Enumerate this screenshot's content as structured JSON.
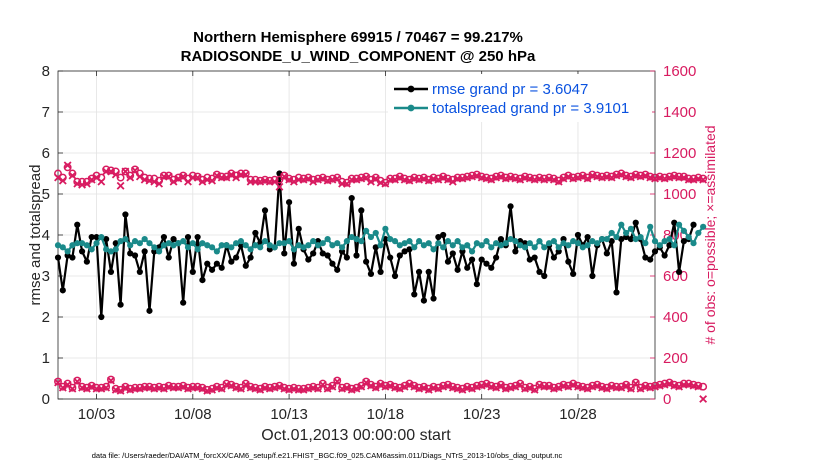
{
  "chart_data": {
    "type": "line",
    "title": "Northern Hemisphere 69915 / 70467 = 99.217%",
    "subtitle": "RADIOSONDE_U_WIND_COMPONENT @ 250 hPa",
    "xlabel": "Oct.01,2013 00:00:00 start",
    "ylabel": "rmse and totalspread",
    "ylabel_right": "# of obs: o=possible; ×=assimilated",
    "footer": "data file: /Users/raeder/DAI/ATM_forcXX/CAM6_setup/f.e21.FHIST_BGC.f09_025.CAM6assim.011/Diags_NTrS_2013-10/obs_diag_output.nc",
    "xlim": [
      1,
      32
    ],
    "ylim": [
      0,
      8
    ],
    "ylim_right": [
      0,
      1600
    ],
    "grid": true,
    "x_ticks": [
      3,
      8,
      13,
      18,
      23,
      28
    ],
    "x_tick_labels": [
      "10/03",
      "10/08",
      "10/13",
      "10/18",
      "10/23",
      "10/28"
    ],
    "y_ticks": [
      0,
      1,
      2,
      3,
      4,
      5,
      6,
      7,
      8
    ],
    "y_ticks_right": [
      0,
      200,
      400,
      600,
      800,
      1000,
      1200,
      1400,
      1600
    ],
    "legend_position": "top-right",
    "x_start": 1.0,
    "x_step": 0.25,
    "series": [
      {
        "name": "rmse grand pr = 3.6047",
        "axis": "left",
        "color": "#000000",
        "marker": "circle",
        "values": [
          3.45,
          2.65,
          3.5,
          3.45,
          4.25,
          3.6,
          3.35,
          3.95,
          3.95,
          2.0,
          3.9,
          3.1,
          3.8,
          2.3,
          4.5,
          3.55,
          3.5,
          3.1,
          3.6,
          2.15,
          3.6,
          3.7,
          3.95,
          3.45,
          3.9,
          3.8,
          2.35,
          3.95,
          3.1,
          3.95,
          2.9,
          3.3,
          3.15,
          3.3,
          3.2,
          3.75,
          3.35,
          3.45,
          3.75,
          3.25,
          3.45,
          4.05,
          3.8,
          4.6,
          3.65,
          3.7,
          5.5,
          3.55,
          4.8,
          3.3,
          4.15,
          3.65,
          3.4,
          3.55,
          3.85,
          3.55,
          3.5,
          3.3,
          3.15,
          3.6,
          3.45,
          4.9,
          3.5,
          4.6,
          3.35,
          3.05,
          3.7,
          3.1,
          3.9,
          3.45,
          3.0,
          3.5,
          3.6,
          3.65,
          2.55,
          3.1,
          2.4,
          3.1,
          2.45,
          3.95,
          4.0,
          3.35,
          3.55,
          3.15,
          3.6,
          3.2,
          3.4,
          2.8,
          3.4,
          3.3,
          3.2,
          3.45,
          3.9,
          3.75,
          4.7,
          3.6,
          3.85,
          3.8,
          3.4,
          3.45,
          3.1,
          3.0,
          3.75,
          3.45,
          3.6,
          3.9,
          3.35,
          3.05,
          4.0,
          3.75,
          3.95,
          3.0,
          3.75,
          3.9,
          3.55,
          3.85,
          2.6,
          3.9,
          3.95,
          3.9,
          4.3,
          3.9,
          3.45,
          3.4,
          3.6,
          3.7,
          3.5,
          3.75,
          4.3,
          3.1,
          3.85,
          3.9,
          4.25
        ]
      },
      {
        "name": "totalspread grand pr = 3.9101",
        "axis": "left",
        "color": "#1a8a8a",
        "marker": "circle",
        "values": [
          3.75,
          3.7,
          3.6,
          3.75,
          3.8,
          3.8,
          3.75,
          3.65,
          3.8,
          3.95,
          3.65,
          3.6,
          3.65,
          3.85,
          3.9,
          3.75,
          3.85,
          3.8,
          3.9,
          3.8,
          3.7,
          3.6,
          3.75,
          3.8,
          3.75,
          3.8,
          3.85,
          3.7,
          3.8,
          3.65,
          3.8,
          3.75,
          3.7,
          3.6,
          3.75,
          3.75,
          3.7,
          3.8,
          3.85,
          3.75,
          3.65,
          3.75,
          3.7,
          3.85,
          3.75,
          3.7,
          3.8,
          3.8,
          3.85,
          3.65,
          3.75,
          3.7,
          3.75,
          3.85,
          3.75,
          3.8,
          3.9,
          3.75,
          3.8,
          3.7,
          3.85,
          3.95,
          3.9,
          3.85,
          4.1,
          3.95,
          4.05,
          3.75,
          4.15,
          3.9,
          3.85,
          3.75,
          3.8,
          3.85,
          3.7,
          3.85,
          3.75,
          3.8,
          3.65,
          3.8,
          3.7,
          3.85,
          3.75,
          3.85,
          3.7,
          3.75,
          3.6,
          3.8,
          3.75,
          3.85,
          3.7,
          3.8,
          3.75,
          3.8,
          3.9,
          3.85,
          3.75,
          3.7,
          3.8,
          3.7,
          3.85,
          3.7,
          3.8,
          3.85,
          3.7,
          3.8,
          3.75,
          3.85,
          3.8,
          3.7,
          3.75,
          3.85,
          3.8,
          3.9,
          3.9,
          4.05,
          3.95,
          4.25,
          4.05,
          4.15,
          3.9,
          3.95,
          3.8,
          4.2,
          3.85,
          3.75,
          3.85,
          3.9,
          3.75,
          4.25,
          4.1,
          3.95,
          3.8,
          4.05,
          4.2
        ]
      },
      {
        "name": "possible",
        "axis": "right",
        "color": "#d81b60",
        "marker": "o",
        "values": [
          1100,
          1080,
          1130,
          1100,
          1060,
          1060,
          1060,
          1075,
          1090,
          1080,
          1120,
          1115,
          1110,
          1080,
          1110,
          1090,
          1120,
          1100,
          1080,
          1075,
          1075,
          1065,
          1090,
          1090,
          1070,
          1080,
          1090,
          1075,
          1090,
          1085,
          1070,
          1080,
          1075,
          1095,
          1085,
          1085,
          1100,
          1090,
          1100,
          1100,
          1070,
          1070,
          1065,
          1070,
          1065,
          1070,
          1070,
          1090,
          1075,
          1070,
          1080,
          1075,
          1080,
          1070,
          1075,
          1080,
          1070,
          1075,
          1080,
          1060,
          1055,
          1075,
          1075,
          1080,
          1085,
          1070,
          1080,
          1065,
          1055,
          1075,
          1075,
          1085,
          1075,
          1070,
          1080,
          1075,
          1080,
          1070,
          1080,
          1075,
          1085,
          1075,
          1070,
          1080,
          1080,
          1085,
          1090,
          1095,
          1085,
          1080,
          1075,
          1085,
          1090,
          1080,
          1085,
          1080,
          1075,
          1085,
          1080,
          1075,
          1080,
          1075,
          1080,
          1075,
          1065,
          1080,
          1090,
          1080,
          1085,
          1090,
          1080,
          1095,
          1090,
          1085,
          1090,
          1085,
          1095,
          1100,
          1090,
          1085,
          1095,
          1090,
          1095,
          1085,
          1080,
          1085,
          1080,
          1085,
          1090,
          1085,
          1085,
          1075,
          1075,
          1080,
          1075
        ]
      },
      {
        "name": "assimilated",
        "axis": "right",
        "color": "#d81b60",
        "marker": "x",
        "values": [
          1080,
          1065,
          1140,
          1090,
          1050,
          1045,
          1050,
          1070,
          1080,
          1060,
          1110,
          1110,
          1095,
          1040,
          1110,
          1080,
          1115,
          1085,
          1070,
          1065,
          1060,
          1050,
          1085,
          1085,
          1060,
          1075,
          1085,
          1060,
          1080,
          1080,
          1060,
          1070,
          1065,
          1090,
          1080,
          1080,
          1095,
          1080,
          1095,
          1095,
          1060,
          1060,
          1060,
          1065,
          1060,
          1060,
          1035,
          1085,
          1070,
          1060,
          1070,
          1070,
          1075,
          1060,
          1070,
          1075,
          1065,
          1070,
          1075,
          1050,
          1050,
          1070,
          1070,
          1075,
          1080,
          1060,
          1075,
          1055,
          1050,
          1070,
          1070,
          1080,
          1070,
          1065,
          1075,
          1070,
          1075,
          1065,
          1075,
          1070,
          1080,
          1070,
          1060,
          1075,
          1075,
          1080,
          1085,
          1090,
          1080,
          1075,
          1070,
          1080,
          1085,
          1075,
          1080,
          1075,
          1070,
          1080,
          1075,
          1070,
          1075,
          1070,
          1075,
          1070,
          1060,
          1075,
          1085,
          1075,
          1080,
          1085,
          1075,
          1090,
          1085,
          1080,
          1085,
          1080,
          1090,
          1095,
          1085,
          1080,
          1090,
          1085,
          1090,
          1080,
          1075,
          1080,
          1075,
          1080,
          1085,
          1080,
          1080,
          1070,
          1070,
          1075,
          1070
        ]
      },
      {
        "name": "possible (bottom)",
        "axis": "right",
        "color": "#d81b60",
        "marker": "o",
        "values": [
          85,
          60,
          75,
          55,
          90,
          60,
          55,
          65,
          55,
          55,
          60,
          95,
          50,
          45,
          60,
          50,
          55,
          55,
          60,
          60,
          55,
          60,
          55,
          65,
          60,
          60,
          65,
          55,
          60,
          60,
          55,
          45,
          50,
          60,
          55,
          75,
          70,
          60,
          55,
          75,
          60,
          55,
          50,
          60,
          55,
          60,
          65,
          55,
          50,
          55,
          50,
          50,
          55,
          60,
          55,
          75,
          55,
          65,
          90,
          55,
          60,
          50,
          55,
          65,
          85,
          70,
          60,
          75,
          65,
          70,
          60,
          55,
          65,
          75,
          65,
          55,
          60,
          50,
          60,
          55,
          65,
          70,
          60,
          55,
          50,
          60,
          55,
          65,
          70,
          75,
          65,
          60,
          70,
          55,
          60,
          65,
          75,
          55,
          60,
          50,
          70,
          65,
          65,
          55,
          60,
          70,
          65,
          75,
          65,
          60,
          55,
          65,
          70,
          60,
          55,
          65,
          60,
          60,
          70,
          55,
          80,
          55,
          65,
          60,
          65,
          70,
          75,
          80,
          70,
          65,
          75,
          75,
          70,
          65,
          60
        ]
      },
      {
        "name": "assimilated (bottom)",
        "axis": "right",
        "color": "#d81b60",
        "marker": "x",
        "values": [
          80,
          55,
          70,
          50,
          85,
          55,
          50,
          60,
          50,
          50,
          55,
          90,
          45,
          40,
          55,
          45,
          50,
          50,
          55,
          55,
          50,
          55,
          50,
          60,
          55,
          55,
          60,
          50,
          55,
          55,
          50,
          40,
          45,
          55,
          50,
          70,
          65,
          55,
          50,
          70,
          55,
          50,
          45,
          55,
          50,
          55,
          60,
          50,
          45,
          50,
          45,
          45,
          50,
          55,
          50,
          70,
          50,
          60,
          85,
          50,
          55,
          45,
          50,
          60,
          80,
          65,
          55,
          70,
          60,
          65,
          55,
          50,
          60,
          70,
          60,
          50,
          55,
          45,
          55,
          50,
          60,
          65,
          55,
          50,
          45,
          55,
          50,
          60,
          65,
          70,
          60,
          55,
          65,
          50,
          55,
          60,
          70,
          50,
          55,
          45,
          65,
          60,
          60,
          50,
          55,
          65,
          60,
          70,
          60,
          55,
          50,
          60,
          65,
          55,
          50,
          60,
          55,
          55,
          65,
          50,
          75,
          50,
          60,
          55,
          60,
          65,
          70,
          75,
          65,
          60,
          70,
          70,
          65,
          60,
          0
        ]
      }
    ]
  }
}
